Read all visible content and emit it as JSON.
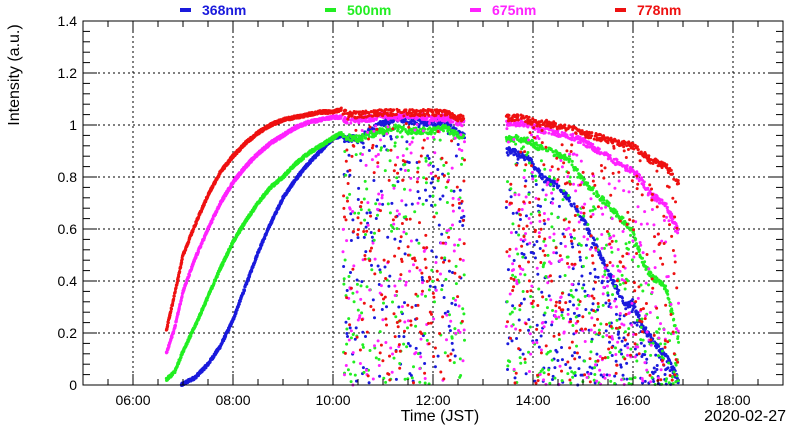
{
  "chart_data": {
    "type": "scatter",
    "xlabel": "Time (JST)",
    "ylabel": "Intensity (a.u.)",
    "date_label": "2020-02-27",
    "xlim": [
      "05:00",
      "19:00"
    ],
    "ylim": [
      0,
      1.4
    ],
    "grid": true,
    "legend_position": "top",
    "x_tick_labels": [
      "06:00",
      "08:00",
      "10:00",
      "12:00",
      "14:00",
      "16:00",
      "18:00"
    ],
    "y_tick_labels": [
      "0",
      "0.2",
      "0.4",
      "0.6",
      "0.8",
      "1",
      "1.2",
      "1.4"
    ],
    "series": [
      {
        "name": "368nm",
        "color": "#1a1adc",
        "smooth": [
          [
            "06:58",
            0.0
          ],
          [
            "07:15",
            0.03
          ],
          [
            "07:30",
            0.08
          ],
          [
            "07:45",
            0.15
          ],
          [
            "08:00",
            0.25
          ],
          [
            "08:15",
            0.38
          ],
          [
            "08:30",
            0.51
          ],
          [
            "08:45",
            0.62
          ],
          [
            "09:00",
            0.72
          ],
          [
            "09:15",
            0.79
          ],
          [
            "09:30",
            0.85
          ],
          [
            "09:45",
            0.9
          ],
          [
            "10:00",
            0.95
          ],
          [
            "10:10",
            0.96
          ]
        ],
        "upper": [
          [
            "10:10",
            0.96
          ],
          [
            "10:30",
            0.96
          ],
          [
            "10:50",
            1.0
          ],
          [
            "11:00",
            1.02
          ],
          [
            "11:15",
            1.04
          ],
          [
            "11:30",
            1.03
          ],
          [
            "12:00",
            1.02
          ],
          [
            "12:15",
            1.02
          ],
          [
            "12:30",
            0.98
          ],
          [
            "13:45",
            0.9
          ],
          [
            "13:55",
            0.88
          ],
          [
            "14:05",
            0.84
          ],
          [
            "14:15",
            0.8
          ],
          [
            "14:30",
            0.78
          ],
          [
            "14:45",
            0.72
          ],
          [
            "15:00",
            0.65
          ],
          [
            "15:50",
            0.32
          ],
          [
            "16:00",
            0.33
          ],
          [
            "16:10",
            0.25
          ],
          [
            "16:20",
            0.2
          ],
          [
            "16:40",
            0.12
          ],
          [
            "16:55",
            0.03
          ]
        ]
      },
      {
        "name": "500nm",
        "color": "#22ee22",
        "smooth": [
          [
            "06:40",
            0.02
          ],
          [
            "06:50",
            0.05
          ],
          [
            "07:00",
            0.13
          ],
          [
            "07:15",
            0.23
          ],
          [
            "07:30",
            0.34
          ],
          [
            "07:45",
            0.45
          ],
          [
            "08:00",
            0.55
          ],
          [
            "08:15",
            0.63
          ],
          [
            "08:30",
            0.7
          ],
          [
            "08:45",
            0.76
          ],
          [
            "09:00",
            0.8
          ],
          [
            "09:15",
            0.85
          ],
          [
            "09:30",
            0.89
          ],
          [
            "09:45",
            0.92
          ],
          [
            "10:00",
            0.95
          ],
          [
            "10:10",
            0.97
          ]
        ],
        "upper": [
          [
            "10:10",
            0.97
          ],
          [
            "10:30",
            0.96
          ],
          [
            "10:50",
            0.98
          ],
          [
            "11:00",
            0.99
          ],
          [
            "11:15",
            1.0
          ],
          [
            "11:30",
            0.99
          ],
          [
            "12:00",
            0.99
          ],
          [
            "12:15",
            1.0
          ],
          [
            "12:30",
            0.97
          ],
          [
            "13:45",
            0.96
          ],
          [
            "13:55",
            0.95
          ],
          [
            "14:05",
            0.93
          ],
          [
            "14:15",
            0.92
          ],
          [
            "14:30",
            0.9
          ],
          [
            "14:45",
            0.88
          ],
          [
            "15:00",
            0.8
          ],
          [
            "15:50",
            0.64
          ],
          [
            "16:00",
            0.6
          ],
          [
            "16:10",
            0.5
          ],
          [
            "16:20",
            0.44
          ],
          [
            "16:40",
            0.38
          ],
          [
            "16:55",
            0.18
          ]
        ]
      },
      {
        "name": "675nm",
        "color": "#ff22ff",
        "smooth": [
          [
            "06:40",
            0.12
          ],
          [
            "06:50",
            0.22
          ],
          [
            "07:00",
            0.36
          ],
          [
            "07:15",
            0.49
          ],
          [
            "07:30",
            0.6
          ],
          [
            "07:45",
            0.7
          ],
          [
            "08:00",
            0.78
          ],
          [
            "08:15",
            0.84
          ],
          [
            "08:30",
            0.89
          ],
          [
            "08:45",
            0.93
          ],
          [
            "09:00",
            0.96
          ],
          [
            "09:15",
            0.99
          ],
          [
            "09:30",
            1.01
          ],
          [
            "09:45",
            1.02
          ],
          [
            "10:00",
            1.03
          ],
          [
            "10:10",
            1.03
          ]
        ],
        "upper": [
          [
            "10:10",
            1.03
          ],
          [
            "10:30",
            1.03
          ],
          [
            "10:50",
            1.04
          ],
          [
            "11:00",
            1.05
          ],
          [
            "11:15",
            1.04
          ],
          [
            "11:30",
            1.05
          ],
          [
            "12:00",
            1.04
          ],
          [
            "12:15",
            1.04
          ],
          [
            "12:30",
            1.02
          ],
          [
            "13:45",
            1.02
          ],
          [
            "13:55",
            1.01
          ],
          [
            "14:05",
            1.0
          ],
          [
            "14:15",
            0.99
          ],
          [
            "14:30",
            0.98
          ],
          [
            "14:45",
            0.97
          ],
          [
            "15:00",
            0.95
          ],
          [
            "15:50",
            0.85
          ],
          [
            "16:00",
            0.84
          ],
          [
            "16:10",
            0.8
          ],
          [
            "16:20",
            0.75
          ],
          [
            "16:40",
            0.7
          ],
          [
            "16:55",
            0.6
          ]
        ]
      },
      {
        "name": "778nm",
        "color": "#ee1111",
        "smooth": [
          [
            "06:40",
            0.21
          ],
          [
            "06:50",
            0.35
          ],
          [
            "07:00",
            0.5
          ],
          [
            "07:15",
            0.62
          ],
          [
            "07:30",
            0.73
          ],
          [
            "07:45",
            0.82
          ],
          [
            "08:00",
            0.88
          ],
          [
            "08:15",
            0.93
          ],
          [
            "08:30",
            0.97
          ],
          [
            "08:45",
            1.0
          ],
          [
            "09:00",
            1.02
          ],
          [
            "09:15",
            1.03
          ],
          [
            "09:30",
            1.04
          ],
          [
            "09:45",
            1.05
          ],
          [
            "10:00",
            1.05
          ],
          [
            "10:10",
            1.06
          ]
        ],
        "upper": [
          [
            "10:10",
            1.06
          ],
          [
            "10:30",
            1.05
          ],
          [
            "10:50",
            1.06
          ],
          [
            "11:00",
            1.06
          ],
          [
            "11:15",
            1.06
          ],
          [
            "11:30",
            1.06
          ],
          [
            "12:00",
            1.06
          ],
          [
            "12:15",
            1.06
          ],
          [
            "12:30",
            1.04
          ],
          [
            "13:45",
            1.04
          ],
          [
            "13:55",
            1.03
          ],
          [
            "14:05",
            1.02
          ],
          [
            "14:15",
            1.02
          ],
          [
            "14:30",
            1.01
          ],
          [
            "14:45",
            1.0
          ],
          [
            "15:00",
            0.98
          ],
          [
            "15:50",
            0.94
          ],
          [
            "16:00",
            0.93
          ],
          [
            "16:10",
            0.91
          ],
          [
            "16:20",
            0.88
          ],
          [
            "16:40",
            0.85
          ],
          [
            "16:55",
            0.79
          ]
        ]
      }
    ]
  }
}
